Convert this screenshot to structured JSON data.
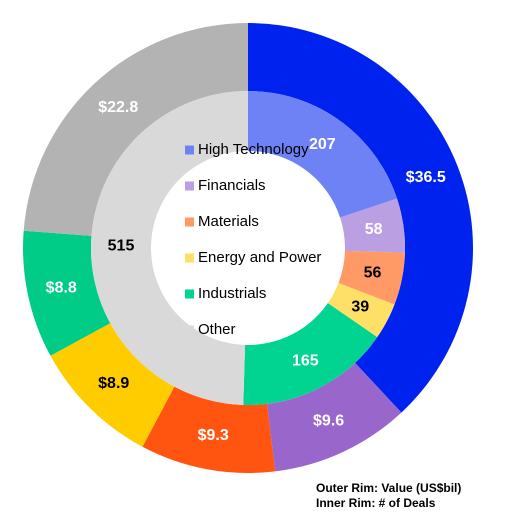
{
  "chart_data": {
    "type": "donut",
    "categories": [
      "High Technology",
      "Financials",
      "Materials",
      "Energy and Power",
      "Industrials",
      "Other"
    ],
    "series": [
      {
        "ring": "outer",
        "values": [
          36.5,
          9.6,
          9.3,
          8.9,
          8.8,
          22.8
        ],
        "value_labels": [
          "$36.5",
          "$9.6",
          "$9.3",
          "$8.9",
          "$8.8",
          "$22.8"
        ],
        "colors": [
          "#0022ee",
          "#9966cc",
          "#ff5511",
          "#ffcc00",
          "#00cc88",
          "#b3b3b3"
        ],
        "label_colors": [
          "#ffffff",
          "#ffffff",
          "#ffffff",
          "#000000",
          "#ffffff",
          "#ffffff"
        ]
      },
      {
        "ring": "inner",
        "values": [
          207,
          58,
          56,
          39,
          165,
          515
        ],
        "colors": [
          "#6f82f5",
          "#bb9fe3",
          "#ff9966",
          "#ffe066",
          "#00d490",
          "#d9d9d9"
        ],
        "label_colors": [
          "#ffffff",
          "#ffffff",
          "#000000",
          "#000000",
          "#ffffff",
          "#000000"
        ]
      }
    ],
    "annotations": [
      "Outer Rim: Value (US$bil)",
      "Inner Rim: # of Deals"
    ]
  }
}
